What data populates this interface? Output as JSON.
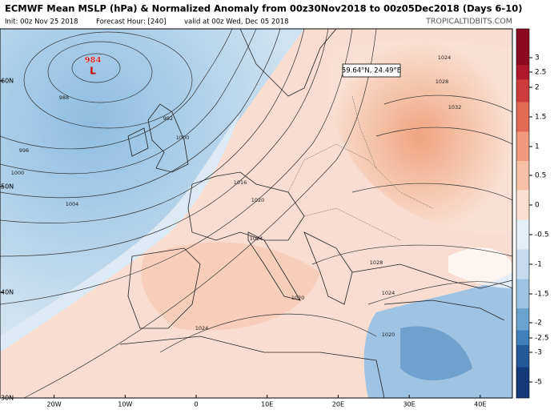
{
  "header": {
    "title": "ECMWF Mean MSLP (hPa) & Normalized Anomaly from 00z30Nov2018 to 00z05Dec2018 (Days 6-10)",
    "init": "Init: 00z Nov 25 2018",
    "forecast_hour": "Forecast Hour: [240]",
    "valid": "valid at 00z Wed, Dec 05 2018",
    "source": "TROPICALTIDBITS.COM"
  },
  "map": {
    "lat_labels": [
      {
        "value": 60,
        "label": "60N"
      },
      {
        "value": 50,
        "label": "50N"
      },
      {
        "value": 40,
        "label": "40N"
      },
      {
        "value": 30,
        "label": "30N"
      }
    ],
    "lon_labels": [
      {
        "value": -20,
        "label": "20W"
      },
      {
        "value": -10,
        "label": "10W"
      },
      0,
      {
        "value": 10,
        "label": "10E"
      },
      {
        "value": 20,
        "label": "20E"
      },
      {
        "value": 30,
        "label": "30E"
      },
      {
        "value": 40,
        "label": "40E"
      }
    ],
    "low": {
      "pressure": "984",
      "symbol": "L"
    },
    "isobar_labels": [
      "988",
      "992",
      "996",
      "1000",
      "1000",
      "1004",
      "1016",
      "1020",
      "1024",
      "1024",
      "1028",
      "1032",
      "1028",
      "1020",
      "1024",
      "1024",
      "1020"
    ],
    "cursor": "59.64°N, 24.49°E"
  },
  "colorbar": {
    "ticks": [
      3,
      2.5,
      2,
      1.5,
      1,
      0.5,
      0,
      -0.5,
      -1,
      -1.5,
      -2,
      -2.5,
      -3,
      -5
    ]
  }
}
